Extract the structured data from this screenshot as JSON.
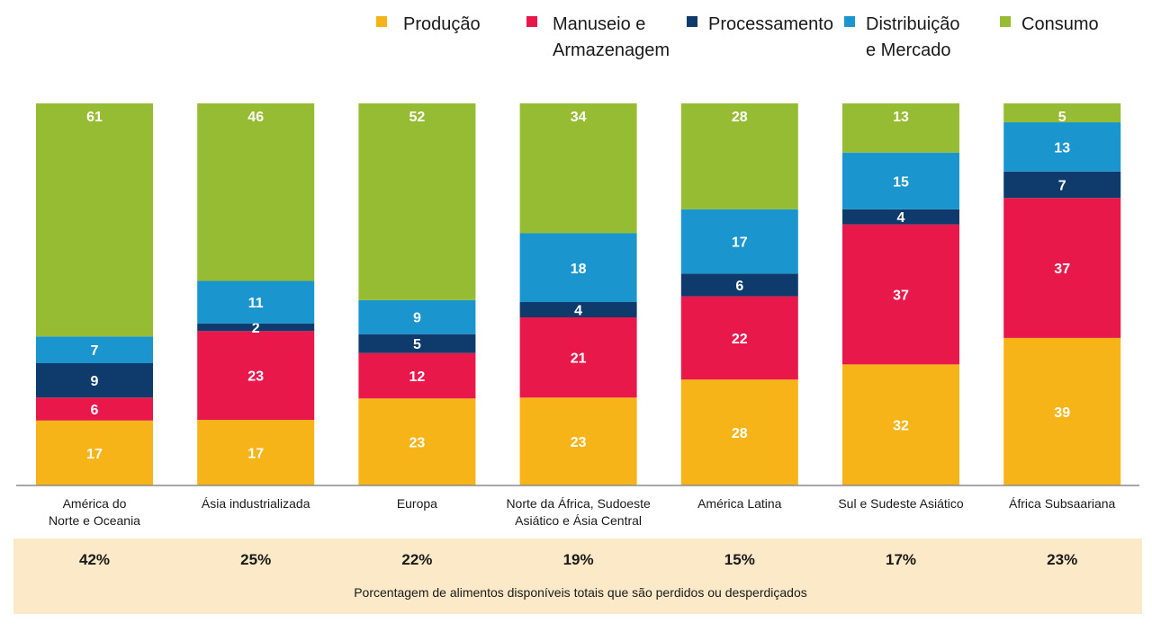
{
  "chart_data": {
    "type": "bar",
    "stacked": true,
    "normalized": true,
    "categories": [
      "América do\nNorte e Oceania",
      "Ásia industrializada",
      "Europa",
      "Norte da África, Sudoeste\nAsiático e Ásia Central",
      "América Latina",
      "Sul e Sudeste Asiático",
      "África Subsaariana"
    ],
    "series": [
      {
        "name": "Produção",
        "color": "#F7B418",
        "values": [
          17,
          17,
          23,
          23,
          28,
          32,
          39
        ]
      },
      {
        "name": "Manuseio e\nArmazenagem",
        "color": "#E8194A",
        "values": [
          6,
          23,
          12,
          21,
          22,
          37,
          37
        ]
      },
      {
        "name": "Processamento",
        "color": "#0E3B6B",
        "values": [
          9,
          2,
          5,
          4,
          6,
          4,
          7
        ]
      },
      {
        "name": "Distribuição\ne Mercado",
        "color": "#1B95CE",
        "values": [
          7,
          11,
          9,
          18,
          17,
          15,
          13
        ]
      },
      {
        "name": "Consumo",
        "color": "#96BC33",
        "values": [
          61,
          46,
          52,
          34,
          28,
          13,
          5
        ]
      }
    ],
    "totals": [
      "42%",
      "25%",
      "22%",
      "19%",
      "15%",
      "17%",
      "23%"
    ],
    "totals_caption": "Porcentagem de alimentos disponíveis totais que são perdidos ou desperdiçados",
    "legend_position": "top",
    "grid": false,
    "colors": {
      "baseline": "#8C8C8C",
      "footer_band": "#FBE9C8"
    }
  }
}
